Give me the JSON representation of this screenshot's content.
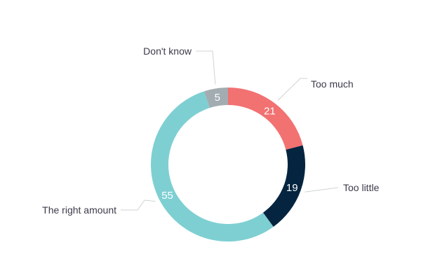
{
  "chart_data": {
    "type": "pie",
    "donut": true,
    "title": "",
    "slices": [
      {
        "label": "Too much",
        "value": 21,
        "color": "#f27171"
      },
      {
        "label": "Too little",
        "value": 19,
        "color": "#04243f"
      },
      {
        "label": "The right amount",
        "value": 55,
        "color": "#7ecfd2"
      },
      {
        "label": "Don't know",
        "value": 5,
        "color": "#a2acb1"
      }
    ],
    "start_angle_deg": 0,
    "direction": "clockwise"
  }
}
